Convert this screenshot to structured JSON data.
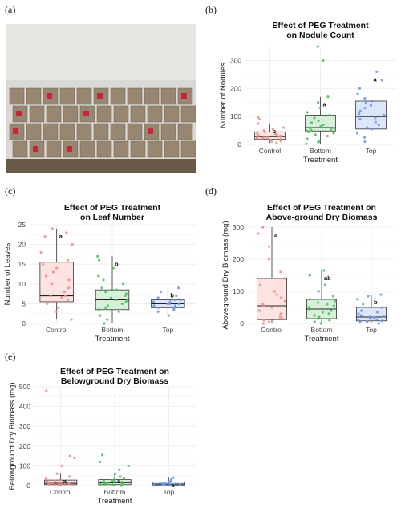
{
  "panel_labels": [
    "(a)",
    "(b)",
    "(c)",
    "(d)",
    "(e)"
  ],
  "photo": {
    "colors": {
      "wall": "#d9d8d4",
      "trays": "#8c7a60",
      "tags": "#c8243a",
      "bench": "#6a5b48"
    }
  },
  "colors": {
    "Control": {
      "fill": "#fde3e1",
      "point": "#f08a84"
    },
    "Bottom": {
      "fill": "#d7f0d9",
      "point": "#4dbb59"
    },
    "Top": {
      "fill": "#dbe6fb",
      "point": "#6a95e6"
    },
    "grid": "#ebebeb"
  },
  "chart_data": [
    {
      "panel": "(b)",
      "type": "box",
      "title": [
        "Effect of PEG Treatment",
        "on Nodule Count"
      ],
      "xlabel": "Treatment",
      "ylabel": "Number of Nodules",
      "categories": [
        "Control",
        "Bottom",
        "Top"
      ],
      "ylim": [
        0,
        350
      ],
      "yticks": [
        0,
        100,
        200,
        300
      ],
      "series": [
        {
          "name": "Control",
          "q1": 18,
          "median": 28,
          "q3": 45,
          "whisker_low": 5,
          "whisker_high": 75,
          "label": "b",
          "points": [
            5,
            10,
            12,
            15,
            18,
            20,
            22,
            24,
            25,
            26,
            28,
            30,
            32,
            35,
            38,
            40,
            45,
            50,
            55,
            60,
            75,
            90,
            98
          ]
        },
        {
          "name": "Bottom",
          "q1": 48,
          "median": 60,
          "q3": 105,
          "whisker_low": 2,
          "whisker_high": 170,
          "label": "a",
          "points": [
            2,
            8,
            12,
            20,
            30,
            35,
            40,
            45,
            48,
            52,
            55,
            58,
            60,
            65,
            70,
            78,
            85,
            95,
            105,
            115,
            130,
            150,
            170,
            300,
            350
          ]
        },
        {
          "name": "Top",
          "q1": 55,
          "median": 100,
          "q3": 155,
          "whisker_low": 10,
          "whisker_high": 260,
          "label": "a",
          "points": [
            10,
            25,
            40,
            55,
            60,
            70,
            80,
            90,
            95,
            100,
            105,
            110,
            120,
            130,
            140,
            150,
            155,
            165,
            180,
            200,
            230,
            260
          ]
        }
      ]
    },
    {
      "panel": "(c)",
      "type": "box",
      "title": [
        "Effect of PEG Treatment",
        "on Leaf Number"
      ],
      "xlabel": "Treatment",
      "ylabel": "Number of Leaves",
      "categories": [
        "Control",
        "Bottom",
        "Top"
      ],
      "ylim": [
        0,
        25
      ],
      "yticks": [
        0,
        5,
        10,
        15,
        20,
        25
      ],
      "series": [
        {
          "name": "Control",
          "q1": 5.5,
          "median": 7,
          "q3": 15.5,
          "whisker_low": 1,
          "whisker_high": 24,
          "label": "a",
          "points": [
            1,
            3,
            4,
            5,
            5.5,
            6,
            6.5,
            7,
            7,
            8,
            9,
            10,
            11,
            12,
            13,
            14,
            15,
            16,
            18,
            20,
            22,
            23,
            24
          ]
        },
        {
          "name": "Bottom",
          "q1": 3.5,
          "median": 6,
          "q3": 8.5,
          "whisker_low": 0,
          "whisker_high": 17,
          "label": "b",
          "points": [
            0,
            1,
            2,
            3,
            3.5,
            4,
            4.5,
            5,
            5.5,
            6,
            6,
            6.5,
            7,
            7.5,
            8,
            8.5,
            9,
            10,
            11,
            12,
            14,
            16,
            17
          ]
        },
        {
          "name": "Top",
          "q1": 4,
          "median": 5,
          "q3": 6,
          "whisker_low": 2,
          "whisker_high": 9,
          "label": "b",
          "points": [
            2,
            3,
            3.5,
            4,
            4,
            4.5,
            4.5,
            5,
            5,
            5,
            5.5,
            5.5,
            6,
            6,
            6.5,
            7,
            8,
            9
          ]
        }
      ]
    },
    {
      "panel": "(d)",
      "type": "box",
      "title": [
        "Effect of PEG Treatment on",
        "Above-ground Dry Biomass"
      ],
      "xlabel": "Treatment",
      "ylabel": "Aboveground Dry Biomass (mg)",
      "categories": [
        "Control",
        "Bottom",
        "Top"
      ],
      "ylim": [
        0,
        300
      ],
      "yticks": [
        0,
        100,
        200,
        300
      ],
      "series": [
        {
          "name": "Control",
          "q1": 12,
          "median": 55,
          "q3": 140,
          "whisker_low": 0,
          "whisker_high": 300,
          "label": "a",
          "points": [
            0,
            5,
            10,
            15,
            20,
            30,
            40,
            50,
            55,
            60,
            70,
            80,
            90,
            100,
            120,
            140,
            160,
            200,
            240,
            280,
            300
          ]
        },
        {
          "name": "Bottom",
          "q1": 15,
          "median": 45,
          "q3": 75,
          "whisker_low": 0,
          "whisker_high": 165,
          "label": "ab",
          "points": [
            0,
            5,
            10,
            15,
            20,
            25,
            30,
            35,
            40,
            45,
            50,
            55,
            60,
            65,
            70,
            75,
            85,
            100,
            120,
            150,
            165
          ]
        },
        {
          "name": "Top",
          "q1": 8,
          "median": 20,
          "q3": 50,
          "whisker_low": 0,
          "whisker_high": 90,
          "label": "b",
          "points": [
            0,
            3,
            5,
            8,
            10,
            12,
            15,
            18,
            20,
            22,
            25,
            30,
            35,
            40,
            50,
            60,
            75,
            85,
            90
          ]
        }
      ]
    },
    {
      "panel": "(e)",
      "type": "box",
      "title": [
        "Effect of PEG Treatment on",
        "Belowground Dry Biomass"
      ],
      "xlabel": "Treatment",
      "ylabel": "Belowground Dry Biomass (mg)",
      "categories": [
        "Control",
        "Bottom",
        "Top"
      ],
      "ylim": [
        0,
        500
      ],
      "yticks": [
        0,
        100,
        200,
        300,
        400,
        500
      ],
      "series": [
        {
          "name": "Control",
          "q1": 5,
          "median": 12,
          "q3": 28,
          "whisker_low": 0,
          "whisker_high": 60,
          "label": "a",
          "points": [
            0,
            2,
            4,
            5,
            6,
            8,
            10,
            12,
            14,
            16,
            20,
            25,
            28,
            35,
            45,
            60,
            100,
            140,
            150,
            480
          ]
        },
        {
          "name": "Bottom",
          "q1": 5,
          "median": 15,
          "q3": 30,
          "whisker_low": 0,
          "whisker_high": 60,
          "label": "a",
          "points": [
            0,
            2,
            4,
            5,
            8,
            10,
            12,
            15,
            18,
            20,
            22,
            25,
            30,
            35,
            45,
            60,
            80,
            100,
            120,
            155
          ]
        },
        {
          "name": "Top",
          "q1": 3,
          "median": 8,
          "q3": 18,
          "whisker_low": 0,
          "whisker_high": 40,
          "label": "a",
          "points": [
            0,
            1,
            2,
            3,
            4,
            5,
            6,
            8,
            10,
            12,
            14,
            18,
            20,
            25,
            30,
            40
          ]
        }
      ]
    }
  ]
}
